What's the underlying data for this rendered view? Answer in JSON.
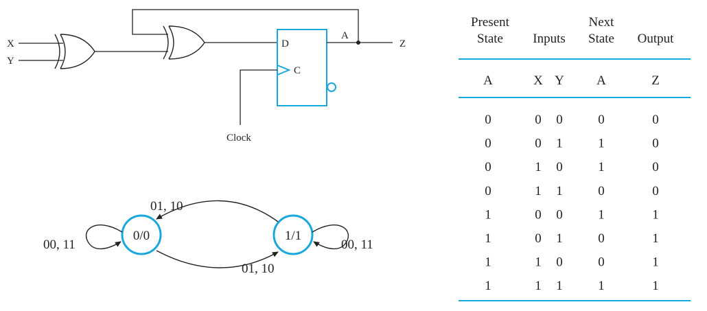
{
  "circuit": {
    "input_x": "X",
    "input_y": "Y",
    "ff_d": "D",
    "ff_c": "C",
    "ff_q": "A",
    "output": "Z",
    "clock": "Clock"
  },
  "state_diagram": {
    "state0": "0/0",
    "state1": "1/1",
    "self0": "00, 11",
    "self1": "00, 11",
    "top_arc": "01, 10",
    "bottom_arc": "01, 10"
  },
  "table": {
    "header_row1": [
      "Present",
      "",
      "",
      "Next",
      ""
    ],
    "header_row2": [
      "State",
      "Inputs",
      "",
      "State",
      "Output"
    ],
    "sub_header": [
      "A",
      "X",
      "Y",
      "A",
      "Z"
    ],
    "rows": [
      [
        "0",
        "0",
        "0",
        "0",
        "0"
      ],
      [
        "0",
        "0",
        "1",
        "1",
        "0"
      ],
      [
        "0",
        "1",
        "0",
        "1",
        "0"
      ],
      [
        "0",
        "1",
        "1",
        "0",
        "0"
      ],
      [
        "1",
        "0",
        "0",
        "1",
        "1"
      ],
      [
        "1",
        "0",
        "1",
        "0",
        "1"
      ],
      [
        "1",
        "1",
        "0",
        "0",
        "1"
      ],
      [
        "1",
        "1",
        "1",
        "1",
        "1"
      ]
    ]
  },
  "colors": {
    "accent": "#1aa7dc",
    "line": "#222222"
  }
}
